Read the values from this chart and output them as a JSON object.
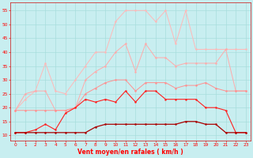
{
  "x": [
    0,
    1,
    2,
    3,
    4,
    5,
    6,
    7,
    8,
    9,
    10,
    11,
    12,
    13,
    14,
    15,
    16,
    17,
    18,
    19,
    20,
    21,
    22,
    23
  ],
  "rafales_max": [
    19,
    23,
    26,
    36,
    26,
    25,
    30,
    35,
    40,
    40,
    51,
    55,
    55,
    55,
    51,
    55,
    43,
    55,
    41,
    41,
    41,
    41,
    41,
    41
  ],
  "rafales_high": [
    19,
    25,
    26,
    26,
    19,
    19,
    20,
    30,
    33,
    35,
    40,
    43,
    33,
    43,
    38,
    38,
    35,
    36,
    36,
    36,
    36,
    41,
    26,
    26
  ],
  "rafales_low": [
    19,
    19,
    19,
    19,
    19,
    19,
    20,
    25,
    27,
    29,
    30,
    30,
    26,
    29,
    29,
    29,
    27,
    28,
    28,
    29,
    27,
    26,
    26,
    26
  ],
  "vent_max": [
    11,
    11,
    12,
    14,
    12,
    18,
    20,
    23,
    22,
    23,
    22,
    26,
    22,
    26,
    26,
    23,
    23,
    23,
    23,
    20,
    20,
    19,
    11,
    11
  ],
  "vent_mean": [
    11,
    11,
    11,
    11,
    11,
    11,
    11,
    11,
    13,
    14,
    14,
    14,
    14,
    14,
    14,
    14,
    14,
    15,
    15,
    14,
    14,
    11,
    11,
    11
  ],
  "col_rafales_max": "#FFB8B8",
  "col_rafales_high": "#FFAAAA",
  "col_rafales_low": "#FF9090",
  "col_vent_max": "#FF2020",
  "col_vent_mean": "#AA0000",
  "bg": "#C8EEF0",
  "grid": "#A8DDDD",
  "xlabel": "Vent moyen/en rafales ( km/h )",
  "ylim": [
    8,
    58
  ],
  "xlim": [
    -0.5,
    23.5
  ],
  "yticks": [
    10,
    15,
    20,
    25,
    30,
    35,
    40,
    45,
    50,
    55
  ],
  "xticks": [
    0,
    1,
    2,
    3,
    4,
    5,
    6,
    7,
    8,
    9,
    10,
    11,
    12,
    13,
    14,
    15,
    16,
    17,
    18,
    19,
    20,
    21,
    22,
    23
  ],
  "xlabel_fontsize": 5.5,
  "tick_fontsize": 4.2
}
